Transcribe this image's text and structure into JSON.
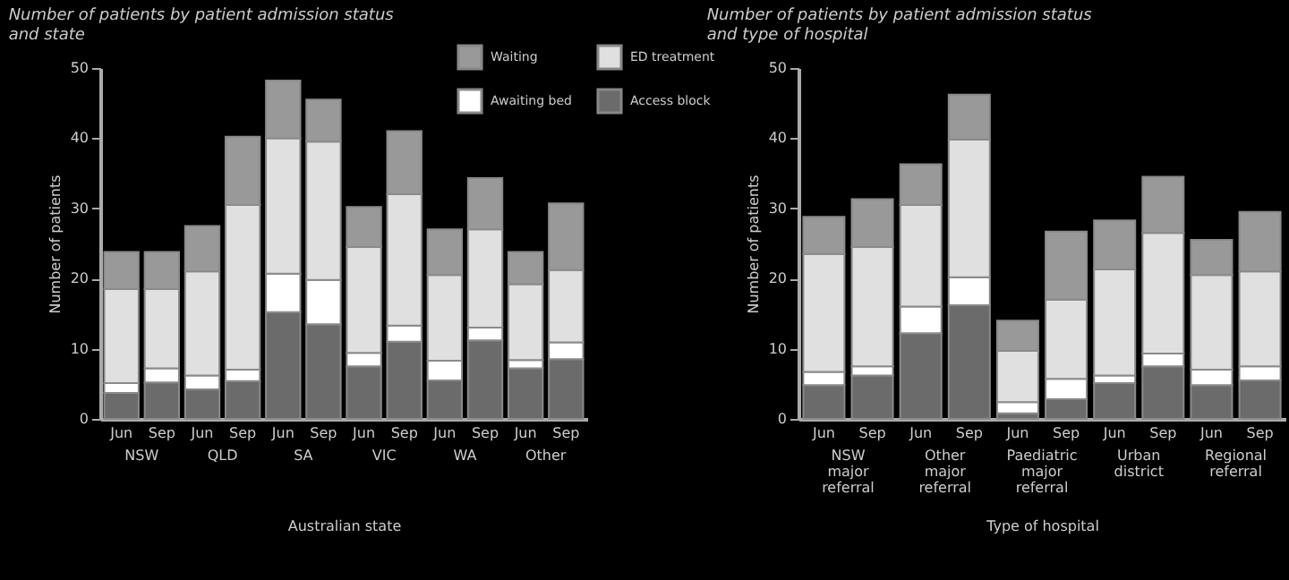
{
  "chart_data": [
    {
      "type": "bar",
      "stacked": true,
      "title": "Number of patients by patient admission status and state",
      "xlabel": "Australian state",
      "ylabel": "Number of patients",
      "categories": [
        "Jun",
        "Sep",
        "Jun",
        "Sep",
        "Jun",
        "Sep",
        "Jun",
        "Sep",
        "Jun",
        "Sep",
        "Jun",
        "Sep"
      ],
      "annotations": [
        "NSW",
        "QLD",
        "SA",
        "VIC",
        "WA",
        "Other"
      ],
      "ylim": [
        0,
        50
      ],
      "yticks": [
        0,
        10,
        20,
        30,
        40,
        50
      ],
      "grid": false,
      "legend": "top right",
      "series": [
        {
          "name": "Access block",
          "color": "#6b6b6b",
          "values": [
            3.7,
            5.2,
            4.2,
            5.4,
            15.2,
            13.5,
            7.5,
            11.0,
            5.5,
            11.2,
            7.2,
            8.5
          ]
        },
        {
          "name": "Awaiting bed",
          "color": "#ffffff",
          "values": [
            1.4,
            2.0,
            2.0,
            1.6,
            5.5,
            6.3,
            1.9,
            2.3,
            2.8,
            1.8,
            1.2,
            2.4
          ]
        },
        {
          "name": "ED treatment",
          "color": "#e0e0e0",
          "values": [
            13.4,
            11.3,
            14.8,
            23.5,
            19.3,
            19.7,
            15.1,
            18.7,
            12.2,
            14.0,
            10.8,
            10.3
          ]
        },
        {
          "name": "Waiting",
          "color": "#999999",
          "values": [
            5.3,
            5.3,
            6.5,
            9.7,
            8.2,
            6.0,
            5.7,
            9.0,
            6.5,
            7.3,
            4.6,
            9.5
          ]
        }
      ]
    },
    {
      "type": "bar",
      "stacked": true,
      "title": "Number of patients by patient admission status and type of hospital",
      "xlabel": "Type of hospital",
      "ylabel": "Number of patients",
      "categories": [
        "Jun",
        "Sep",
        "Jun",
        "Sep",
        "Jun",
        "Sep",
        "Jun",
        "Sep",
        "Jun",
        "Sep"
      ],
      "annotations": [
        "NSW major referral",
        "Other major referral",
        "Paediatric major referral",
        "Urban district",
        "Regional referral"
      ],
      "ylim": [
        0,
        50
      ],
      "yticks": [
        0,
        10,
        20,
        30,
        40,
        50
      ],
      "grid": false,
      "legend": false,
      "series": [
        {
          "name": "Access block",
          "color": "#6b6b6b",
          "values": [
            4.8,
            6.2,
            12.2,
            16.2,
            0.8,
            2.8,
            5.1,
            7.5,
            4.8,
            5.5
          ]
        },
        {
          "name": "Awaiting bed",
          "color": "#ffffff",
          "values": [
            1.9,
            1.3,
            3.8,
            4.0,
            1.6,
            2.9,
            1.1,
            1.8,
            2.2,
            2.0
          ]
        },
        {
          "name": "ED treatment",
          "color": "#e0e0e0",
          "values": [
            16.8,
            17.0,
            14.5,
            19.6,
            7.3,
            11.3,
            15.1,
            17.2,
            13.5,
            13.5
          ]
        },
        {
          "name": "Waiting",
          "color": "#999999",
          "values": [
            5.3,
            6.8,
            5.8,
            6.4,
            4.3,
            9.7,
            7.0,
            8.0,
            5.0,
            8.5
          ]
        }
      ]
    }
  ]
}
